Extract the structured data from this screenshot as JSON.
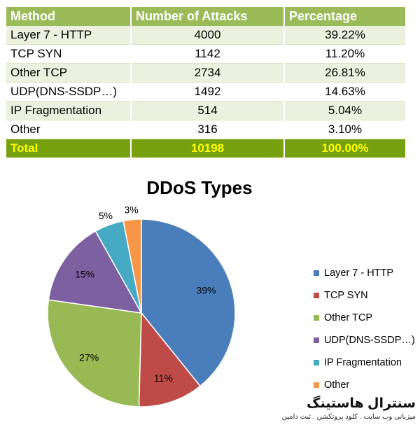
{
  "table": {
    "headers": [
      "Method",
      "Number of Attacks",
      "Percentage"
    ],
    "rows": [
      [
        "Layer 7 - HTTP",
        "4000",
        "39.22%"
      ],
      [
        "TCP SYN",
        "1142",
        "11.20%"
      ],
      [
        "Other TCP",
        "2734",
        "26.81%"
      ],
      [
        "UDP(DNS-SSDP…)",
        "1492",
        "14.63%"
      ],
      [
        "IP Fragmentation",
        "514",
        "5.04%"
      ],
      [
        "Other",
        "316",
        "3.10%"
      ]
    ],
    "total": [
      "Total",
      "10198",
      "100.00%"
    ]
  },
  "chart_data": {
    "type": "pie",
    "title": "DDoS Types",
    "categories": [
      "Layer 7 - HTTP",
      "TCP SYN",
      "Other TCP",
      "UDP(DNS-SSDP…)",
      "IP Fragmentation",
      "Other"
    ],
    "values": [
      4000,
      1142,
      2734,
      1492,
      514,
      316
    ],
    "data_labels": [
      "39%",
      "11%",
      "27%",
      "15%",
      "5%",
      "3%"
    ],
    "colors": [
      "#4a7ebb",
      "#be4b48",
      "#98b954",
      "#7d60a0",
      "#46aac5",
      "#f79646"
    ],
    "legend_position": "right"
  },
  "watermark": {
    "main": "سنترال هاستینگ",
    "sub": "میزبانی وب سایت . کلود پروتکشن . ثبت دامین"
  }
}
